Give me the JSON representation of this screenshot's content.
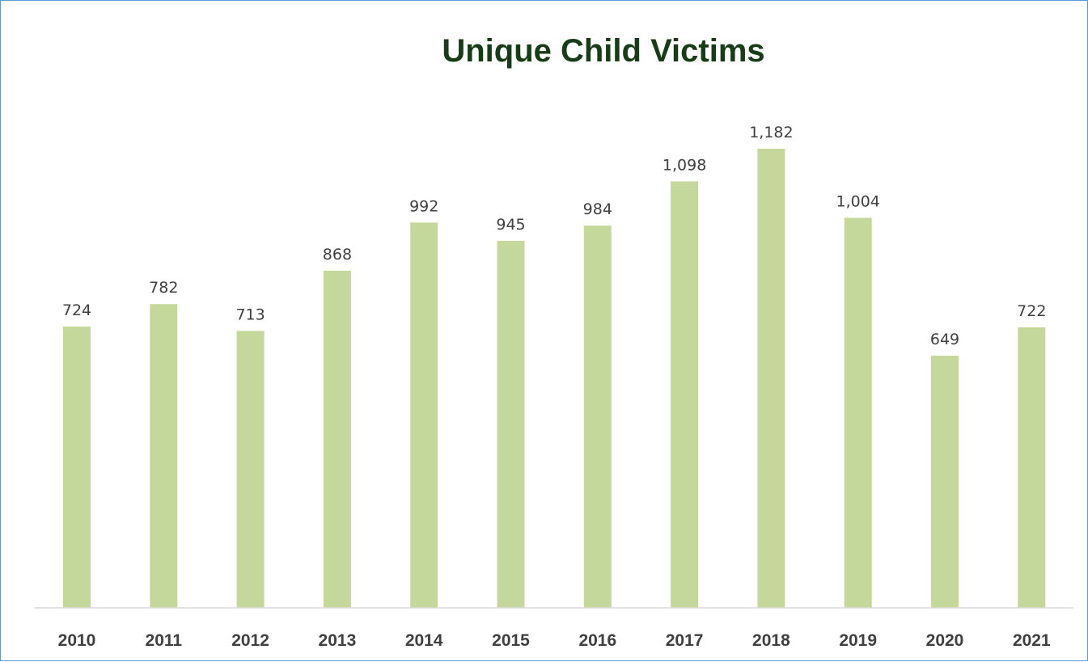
{
  "chart_data": {
    "type": "bar",
    "title": "Unique Child Victims",
    "categories": [
      "2010",
      "2011",
      "2012",
      "2013",
      "2014",
      "2015",
      "2016",
      "2017",
      "2018",
      "2019",
      "2020",
      "2021"
    ],
    "values": [
      724,
      782,
      713,
      868,
      992,
      945,
      984,
      1098,
      1182,
      1004,
      649,
      722
    ],
    "data_labels": [
      "724",
      "782",
      "713",
      "868",
      "992",
      "945",
      "984",
      "1,098",
      "1,182",
      "1,004",
      "649",
      "722"
    ],
    "xlabel": "",
    "ylabel": "",
    "ylim": [
      0,
      1182
    ],
    "grid": false,
    "legend": "none",
    "colors": {
      "bar": "#c5d89b",
      "title": "#173d17",
      "axis": "#d9d9d9",
      "text": "#404040",
      "frame": "#5b9bd5"
    }
  }
}
